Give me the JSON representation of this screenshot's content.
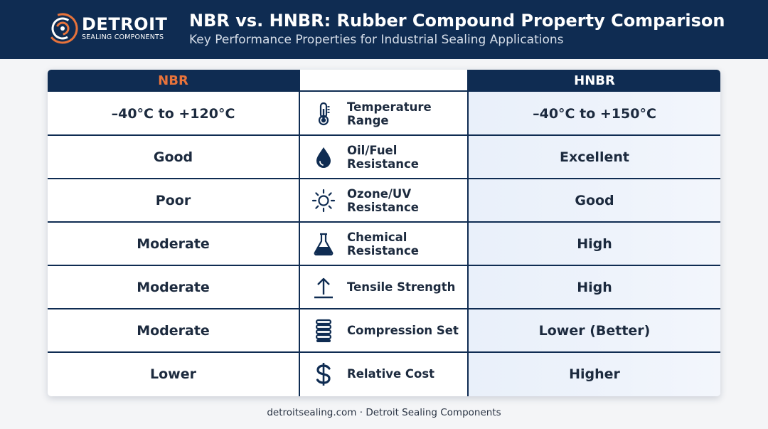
{
  "header": {
    "brand_name": "DETROIT",
    "brand_sub": "SEALING COMPONENTS",
    "title": "NBR vs. HNBR: Rubber Compound Property Comparison",
    "subtitle": "Key Performance Properties for Industrial Sealing Applications"
  },
  "table": {
    "left_header": "NBR",
    "right_header": "HNBR",
    "rows": [
      {
        "property": "Temperature\nRange",
        "icon": "thermometer-icon",
        "nbr": "–40°C to +120°C",
        "hnbr": "–40°C to +150°C"
      },
      {
        "property": "Oil/Fuel\nResistance",
        "icon": "oil-drop-icon",
        "nbr": "Good",
        "hnbr": "Excellent"
      },
      {
        "property": "Ozone/UV\nResistance",
        "icon": "sun-icon",
        "nbr": "Poor",
        "hnbr": "Good"
      },
      {
        "property": "Chemical\nResistance",
        "icon": "flask-icon",
        "nbr": "Moderate",
        "hnbr": "High"
      },
      {
        "property": "Tensile Strength",
        "icon": "arrow-up-icon",
        "nbr": "Moderate",
        "hnbr": "High"
      },
      {
        "property": "Compression Set",
        "icon": "spring-icon",
        "nbr": "Moderate",
        "hnbr": "Lower (Better)"
      },
      {
        "property": "Relative Cost",
        "icon": "dollar-icon",
        "nbr": "Lower",
        "hnbr": "Higher"
      }
    ]
  },
  "footer": "detroitsealing.com · Detroit Sealing Components",
  "colors": {
    "navy": "#0f2c52",
    "accent_orange": "#e8733b",
    "hnbr_column_tint": "#eaf1fb"
  }
}
